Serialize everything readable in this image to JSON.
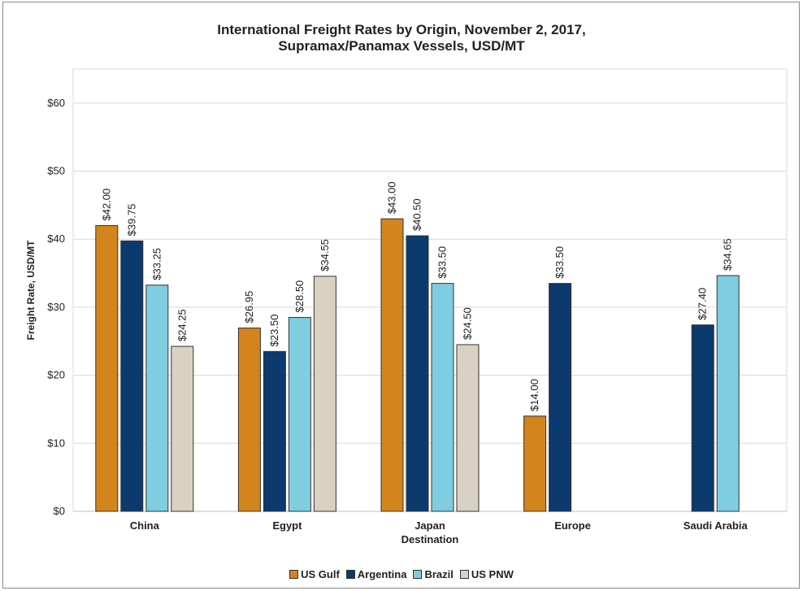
{
  "chart_data": {
    "type": "bar",
    "title": "International Freight Rates by Origin, November 2, 2017,",
    "subtitle": "Supramax/Panamax Vessels, USD/MT",
    "xlabel": "Destination",
    "ylabel": "Freight Rate, USD/MT",
    "ylim": [
      0,
      65
    ],
    "yticks": [
      0,
      10,
      20,
      30,
      40,
      50,
      60
    ],
    "ytick_labels": [
      "$0",
      "$10",
      "$20",
      "$30",
      "$40",
      "$50",
      "$60"
    ],
    "categories": [
      "China",
      "Egypt",
      "Japan",
      "Europe",
      "Saudi Arabia"
    ],
    "series": [
      {
        "name": "US Gulf",
        "color": "#d4841c",
        "values": [
          42.0,
          26.95,
          43.0,
          14.0,
          null
        ],
        "labels": [
          "$42.00",
          "$26.95",
          "$43.00",
          "$14.00",
          null
        ]
      },
      {
        "name": "Argentina",
        "color": "#0c3a6e",
        "values": [
          39.75,
          23.5,
          40.5,
          33.5,
          27.4
        ],
        "labels": [
          "$39.75",
          "$23.50",
          "$40.50",
          "$33.50",
          "$27.40"
        ]
      },
      {
        "name": "Brazil",
        "color": "#7fcde0",
        "values": [
          33.25,
          28.5,
          33.5,
          null,
          34.65
        ],
        "labels": [
          "$33.25",
          "$28.50",
          "$33.50",
          null,
          "$34.65"
        ]
      },
      {
        "name": "US PNW",
        "color": "#d9d2c3",
        "values": [
          24.25,
          34.55,
          24.5,
          null,
          null
        ],
        "labels": [
          "$24.25",
          "$34.55",
          "$24.50",
          null,
          null
        ]
      }
    ],
    "grid": true,
    "legend_position": "bottom"
  }
}
